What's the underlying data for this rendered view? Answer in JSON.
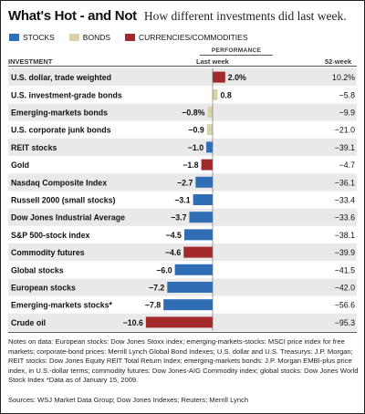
{
  "header": {
    "title": "What's Hot - and Not",
    "subtitle": "How different investments did last week."
  },
  "legend": [
    {
      "label": "STOCKS",
      "color": "#2f6db5"
    },
    {
      "label": "BONDS",
      "color": "#d8d4a8"
    },
    {
      "label": "CURRENCIES/COMMODITIES",
      "color": "#a32a2a"
    }
  ],
  "columns": {
    "performance": "PERFORMANCE",
    "investment": "INVESTMENT",
    "last_week": "Last week",
    "week52": "52-week"
  },
  "chart_data": {
    "type": "bar",
    "orientation": "horizontal",
    "unit": "percent",
    "categories": [
      "U.S. dollar, trade weighted",
      "U.S. investment-grade bonds",
      "Emerging-markets bonds",
      "U.S. corporate junk bonds",
      "REIT stocks",
      "Gold",
      "Nasdaq Composite Index",
      "Russell 2000 (small stocks)",
      "Dow Jones Industrial Average",
      "S&P 500-stock index",
      "Commodity futures",
      "Global stocks",
      "European stocks",
      "Emerging-markets stocks*",
      "Crude oil"
    ],
    "kinds": [
      "currency",
      "bond",
      "bond",
      "bond",
      "stock",
      "currency",
      "stock",
      "stock",
      "stock",
      "stock",
      "currency",
      "stock",
      "stock",
      "stock",
      "currency"
    ],
    "last_week": [
      2.0,
      0.8,
      -0.8,
      -0.9,
      -1.0,
      -1.8,
      -2.7,
      -3.1,
      -3.7,
      -4.5,
      -4.6,
      -6.0,
      -7.2,
      -7.8,
      -10.6
    ],
    "last_week_labels": [
      "2.0%",
      "0.8",
      "−0.8%",
      "−0.9",
      "−1.0",
      "−1.8",
      "−2.7",
      "−3.1",
      "−3.7",
      "−4.5",
      "−4.6",
      "−6.0",
      "−7.2",
      "−7.8",
      "−10.6"
    ],
    "week52_labels": [
      "10.2%",
      "−5.8",
      "−9.9",
      "−21.0",
      "−39.1",
      "−4.7",
      "−36.1",
      "−33.4",
      "−33.6",
      "−38.1",
      "−39.9",
      "−41.5",
      "−42.0",
      "−56.6",
      "−95.3"
    ],
    "colors": {
      "stock": "#2f6db5",
      "bond": "#d8d4a8",
      "currency": "#a32a2a",
      "row_alt": "#e9e9e9"
    },
    "xlim": [
      -11,
      2.5
    ]
  },
  "notes": "Notes on data: European stocks: Dow Jones Stoxx index; emerging-markets-stocks: MSCI price index for free markets; corporate-bond prices: Merrill Lynch Global Bond Indexes; U.S. dollar and U.S. Treasurys: J.P. Morgan; REIT stocks: Dow Jones Equity REIT Total Return Index; emerging-markets bonds: J.P. Morgan EMBI-plus price index, in U.S.-dollar terms; commodity futures: Dow Jones-AIG Commodity index; global stocks: Dow Jones World Stock Index   *Data as of January 15, 2009.",
  "sources": "Sources: WSJ Market Data Group; Dow Jones Indexes; Reuters; Merrill Lynch"
}
